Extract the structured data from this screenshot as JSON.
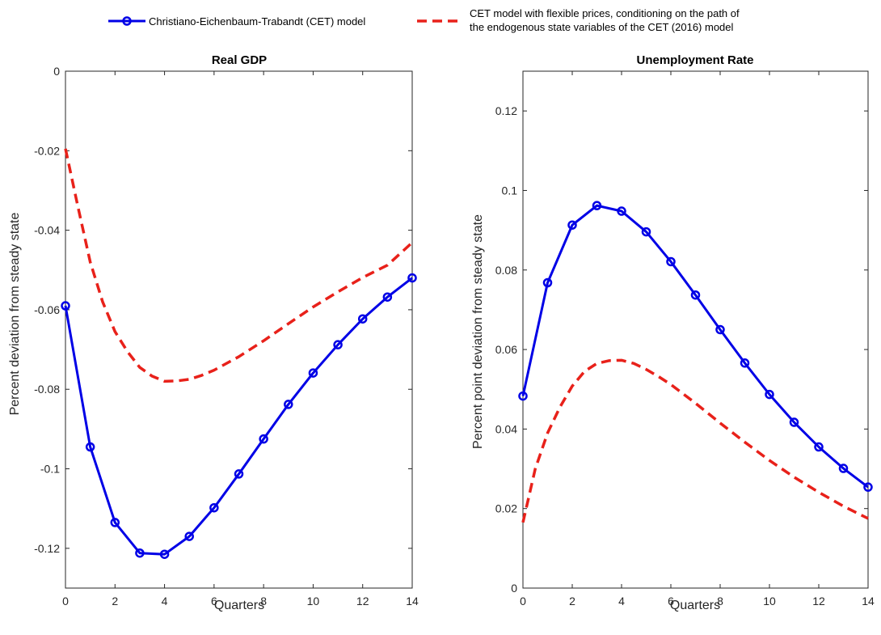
{
  "legend": {
    "blue_label": "Christiano-Eichenbaum-Trabandt (CET) model",
    "red_label_line1": "CET model with flexible prices, conditioning on the path of",
    "red_label_line2": "the endogenous state variables of the CET (2016) model"
  },
  "colors": {
    "blue_series": "#0000e6",
    "red_series": "#e8211a",
    "axis": "#262626"
  },
  "chart_data": [
    {
      "type": "line",
      "title": "Real GDP",
      "xlabel": "Quarters",
      "ylabel": "Percent deviation from steady state",
      "xlim": [
        0,
        14
      ],
      "ylim": [
        -0.13,
        0
      ],
      "xticks": [
        0,
        2,
        4,
        6,
        8,
        10,
        12,
        14
      ],
      "xtick_labels": [
        "0",
        "2",
        "4",
        "6",
        "8",
        "10",
        "12",
        "14"
      ],
      "yticks": [
        0,
        -0.02,
        -0.04,
        -0.06,
        -0.08,
        -0.1,
        -0.12
      ],
      "ytick_labels": [
        "0",
        "-0.02",
        "-0.04",
        "-0.06",
        "-0.08",
        "-0.1",
        "-0.12"
      ],
      "legend_position": "top-center",
      "series": [
        {
          "name": "Christiano-Eichenbaum-Trabandt (CET) model",
          "style": "solid-circle",
          "x": [
            0,
            1,
            2,
            3,
            4,
            5,
            6,
            7,
            8,
            9,
            10,
            11,
            12,
            13,
            14
          ],
          "values": [
            -0.059,
            -0.0945,
            -0.1135,
            -0.1212,
            -0.1215,
            -0.117,
            -0.1098,
            -0.1013,
            -0.0925,
            -0.0838,
            -0.0759,
            -0.0688,
            -0.0623,
            -0.0568,
            -0.052
          ]
        },
        {
          "name": "CET model with flexible prices, conditioning on the path of the endogenous state variables of the CET (2016) model",
          "style": "dashed",
          "x": [
            0,
            0.5,
            1,
            1.5,
            2,
            2.5,
            3,
            3.5,
            4,
            4.5,
            5,
            5.5,
            6,
            7,
            8,
            9,
            10,
            11,
            12,
            13,
            14
          ],
          "values": [
            -0.0195,
            -0.034,
            -0.048,
            -0.058,
            -0.0655,
            -0.0705,
            -0.0745,
            -0.0767,
            -0.078,
            -0.0779,
            -0.0775,
            -0.0765,
            -0.0752,
            -0.0718,
            -0.0678,
            -0.0635,
            -0.0593,
            -0.0555,
            -0.0519,
            -0.0488,
            -0.0431
          ]
        }
      ]
    },
    {
      "type": "line",
      "title": "Unemployment Rate",
      "xlabel": "Quarters",
      "ylabel": "Percent point deviation from steady state",
      "xlim": [
        0,
        14
      ],
      "ylim": [
        0,
        0.13
      ],
      "xticks": [
        0,
        2,
        4,
        6,
        8,
        10,
        12,
        14
      ],
      "xtick_labels": [
        "0",
        "2",
        "4",
        "6",
        "8",
        "10",
        "12",
        "14"
      ],
      "yticks": [
        0,
        0.02,
        0.04,
        0.06,
        0.08,
        0.1,
        0.12
      ],
      "ytick_labels": [
        "0",
        "0.02",
        "0.04",
        "0.06",
        "0.08",
        "0.1",
        "0.12"
      ],
      "series": [
        {
          "name": "Christiano-Eichenbaum-Trabandt (CET) model",
          "style": "solid-circle",
          "x": [
            0,
            1,
            2,
            3,
            4,
            5,
            6,
            7,
            8,
            9,
            10,
            11,
            12,
            13,
            14
          ],
          "values": [
            0.0483,
            0.0768,
            0.0913,
            0.0962,
            0.0948,
            0.0896,
            0.0821,
            0.0737,
            0.065,
            0.0566,
            0.0487,
            0.0417,
            0.0355,
            0.0301,
            0.0254
          ]
        },
        {
          "name": "CET model with flexible prices, conditioning on the path of the endogenous state variables of the CET (2016) model",
          "style": "dashed",
          "x": [
            0,
            0.5,
            1,
            1.5,
            2,
            2.5,
            3,
            3.5,
            4,
            4.5,
            5,
            5.5,
            6,
            7,
            8,
            9,
            10,
            11,
            12,
            13,
            14
          ],
          "values": [
            0.0165,
            0.03,
            0.039,
            0.0455,
            0.0508,
            0.0545,
            0.0565,
            0.0572,
            0.0573,
            0.0565,
            0.055,
            0.0532,
            0.0512,
            0.0465,
            0.0415,
            0.0367,
            0.0321,
            0.0279,
            0.0241,
            0.0206,
            0.0175
          ]
        }
      ]
    }
  ]
}
